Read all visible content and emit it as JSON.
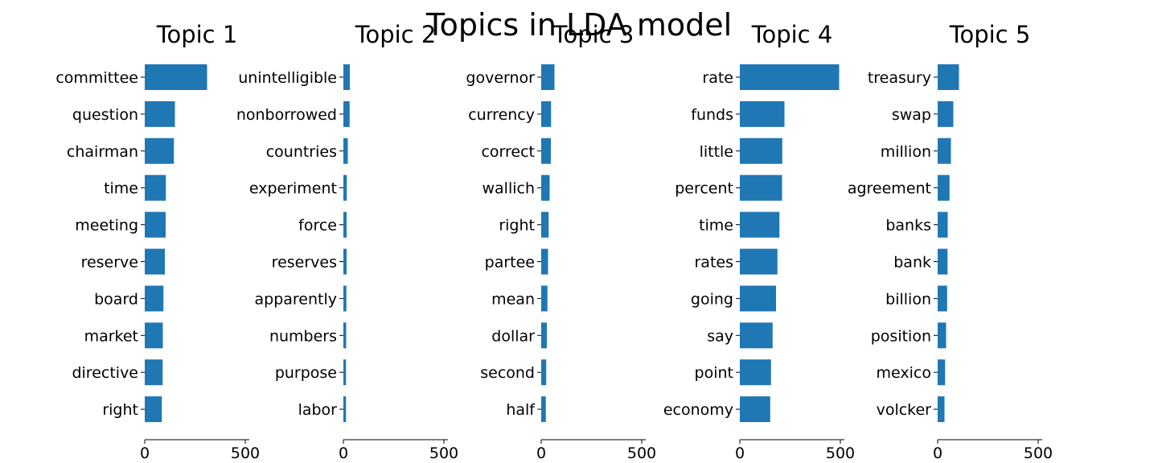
{
  "chart_data": {
    "type": "bar",
    "orientation": "horizontal",
    "title": "Topics in LDA model",
    "bar_color": "#1f77b4",
    "xlim": [
      0,
      520
    ],
    "xticks": [
      0,
      500
    ],
    "subplots": [
      {
        "title": "Topic 1",
        "categories": [
          "committee",
          "question",
          "chairman",
          "time",
          "meeting",
          "reserve",
          "board",
          "market",
          "directive",
          "right"
        ],
        "values": [
          310,
          150,
          145,
          105,
          104,
          100,
          93,
          90,
          89,
          85
        ]
      },
      {
        "title": "Topic 2",
        "categories": [
          "unintelligible",
          "nonborrowed",
          "countries",
          "experiment",
          "force",
          "reserves",
          "apparently",
          "numbers",
          "purpose",
          "labor"
        ],
        "values": [
          32,
          31,
          22,
          17,
          16,
          16,
          15,
          14,
          13,
          13
        ]
      },
      {
        "title": "Topic 3",
        "categories": [
          "governor",
          "currency",
          "correct",
          "wallich",
          "right",
          "partee",
          "mean",
          "dollar",
          "second",
          "half"
        ],
        "values": [
          66,
          49,
          48,
          42,
          37,
          34,
          31,
          28,
          25,
          23
        ]
      },
      {
        "title": "Topic 4",
        "categories": [
          "rate",
          "funds",
          "little",
          "percent",
          "time",
          "rates",
          "going",
          "say",
          "point",
          "economy"
        ],
        "values": [
          494,
          222,
          211,
          210,
          197,
          187,
          180,
          163,
          155,
          151
        ]
      },
      {
        "title": "Topic 5",
        "categories": [
          "treasury",
          "swap",
          "million",
          "agreement",
          "banks",
          "bank",
          "billion",
          "position",
          "mexico",
          "volcker"
        ],
        "values": [
          106,
          78,
          66,
          59,
          50,
          49,
          47,
          42,
          37,
          34
        ]
      }
    ]
  }
}
